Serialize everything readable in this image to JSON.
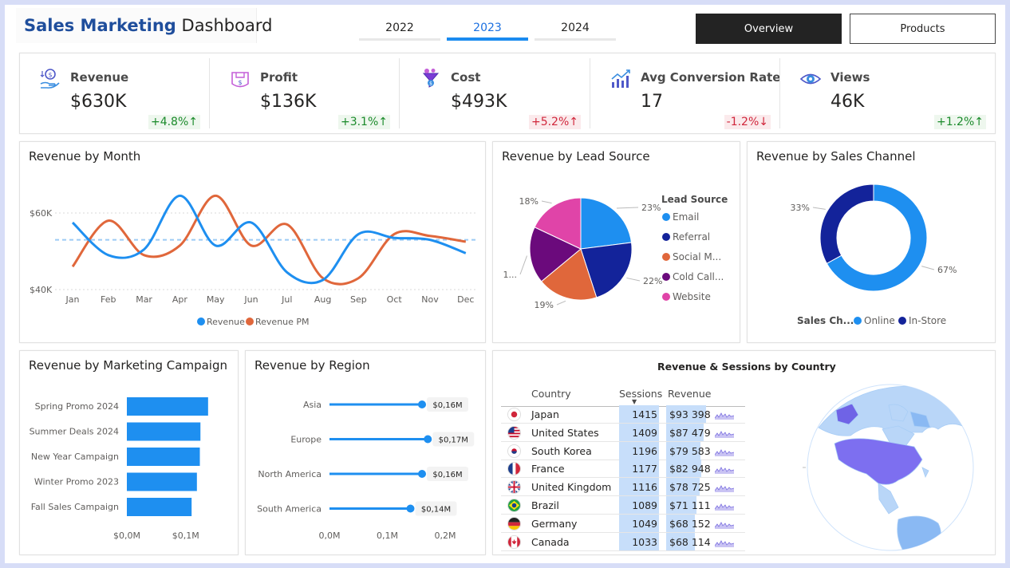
{
  "header": {
    "title_bold": "Sales Marketing",
    "title_rest": " Dashboard",
    "years": [
      "2022",
      "2023",
      "2024"
    ],
    "active_year": "2023",
    "buttons": {
      "overview": "Overview",
      "products": "Products"
    }
  },
  "kpis": [
    {
      "label": "Revenue",
      "value": "$630K",
      "change": "+4.8%↑",
      "trend": "pos",
      "icon": "revenue-hand-coin-icon"
    },
    {
      "label": "Profit",
      "value": "$136K",
      "change": "+3.1%↑",
      "trend": "pos",
      "icon": "profit-box-icon"
    },
    {
      "label": "Cost",
      "value": "$493K",
      "change": "+5.2%↑",
      "trend": "neg",
      "icon": "cost-funnel-icon"
    },
    {
      "label": "Avg Conversion Rate",
      "value": "17",
      "change": "-1.2%↓",
      "trend": "neg",
      "icon": "conversion-chart-icon"
    },
    {
      "label": "Views",
      "value": "46K",
      "change": "+1.2%↑",
      "trend": "pos",
      "icon": "views-eye-icon"
    }
  ],
  "colors": {
    "blue": "#1e8ff0",
    "orange": "#e0673b",
    "navy": "#13239a",
    "purple": "#6b0a7c",
    "pink": "#e044a8",
    "accent": "#1f4e9c"
  },
  "chart_data": [
    {
      "type": "line",
      "title": "Revenue by Month",
      "categories": [
        "Jan",
        "Feb",
        "Mar",
        "Apr",
        "May",
        "Jun",
        "Jul",
        "Aug",
        "Sep",
        "Oct",
        "Nov",
        "Dec"
      ],
      "series": [
        {
          "name": "Revenue",
          "values": [
            57.5,
            49,
            50.5,
            64.5,
            51.5,
            57.5,
            44.5,
            42.5,
            54.5,
            53.5,
            53,
            49.5
          ]
        },
        {
          "name": "Revenue PM",
          "values": [
            46,
            58,
            49,
            51.5,
            64.5,
            51.5,
            57,
            43,
            43,
            54.5,
            54,
            52.5
          ]
        }
      ],
      "avg_line": 53,
      "yticks": [
        "$60K",
        "$40K"
      ],
      "ytick_values": [
        60,
        40
      ],
      "ylim": [
        39,
        67
      ],
      "legend": [
        "Revenue",
        "Revenue PM"
      ]
    },
    {
      "type": "pie",
      "title": "Revenue by Lead Source",
      "legend_title": "Lead Source",
      "labels": [
        "Email",
        "Referral",
        "Social M...",
        "Cold Call...",
        "Website"
      ],
      "values": [
        23,
        22,
        19,
        18,
        18
      ],
      "display_labels": [
        "23%",
        "22%",
        "19%",
        "1...",
        "18%"
      ]
    },
    {
      "type": "pie",
      "title": "Revenue by Sales Channel",
      "legend_title": "Sales Ch...",
      "labels": [
        "Online",
        "In-Store"
      ],
      "values": [
        67,
        33
      ],
      "display_labels": [
        "67%",
        "33%"
      ]
    },
    {
      "type": "bar",
      "title": "Revenue by Marketing Campaign",
      "categories": [
        "Spring Promo 2024",
        "Summer Deals 2024",
        "New Year Campaign",
        "Winter Promo 2023",
        "Fall Sales Campaign"
      ],
      "values": [
        0.138,
        0.125,
        0.124,
        0.119,
        0.11
      ],
      "xticks": [
        "$0,0M",
        "$0,1M"
      ],
      "xtick_values": [
        0,
        0.1
      ],
      "xlim": [
        0,
        0.145
      ]
    },
    {
      "type": "bar",
      "title": "Revenue by Region",
      "categories": [
        "Asia",
        "Europe",
        "North America",
        "South America"
      ],
      "values": [
        0.16,
        0.17,
        0.16,
        0.14
      ],
      "data_labels": [
        "$0,16M",
        "$0,17M",
        "$0,16M",
        "$0,14M"
      ],
      "xticks": [
        "0,0M",
        "0,1M",
        "0,2M"
      ],
      "xtick_values": [
        0,
        0.1,
        0.2
      ],
      "xlim": [
        0,
        0.2
      ]
    }
  ],
  "country_table": {
    "title": "Revenue & Sessions by Country",
    "columns": [
      "Country",
      "Sessions",
      "Revenue"
    ],
    "rows": [
      {
        "country": "Japan",
        "sessions": "1415",
        "revenue": "$93 398",
        "flag": "japan-flag-icon"
      },
      {
        "country": "United States",
        "sessions": "1409",
        "revenue": "$87 479",
        "flag": "usa-flag-icon"
      },
      {
        "country": "South Korea",
        "sessions": "1196",
        "revenue": "$79 583",
        "flag": "south-korea-flag-icon"
      },
      {
        "country": "France",
        "sessions": "1177",
        "revenue": "$82 948",
        "flag": "france-flag-icon"
      },
      {
        "country": "United Kingdom",
        "sessions": "1116",
        "revenue": "$78 725",
        "flag": "uk-flag-icon"
      },
      {
        "country": "Brazil",
        "sessions": "1089",
        "revenue": "$71 111",
        "flag": "brazil-flag-icon"
      },
      {
        "country": "Germany",
        "sessions": "1049",
        "revenue": "$68 152",
        "flag": "germany-flag-icon"
      },
      {
        "country": "Canada",
        "sessions": "1033",
        "revenue": "$68 114",
        "flag": "canada-flag-icon"
      }
    ]
  }
}
